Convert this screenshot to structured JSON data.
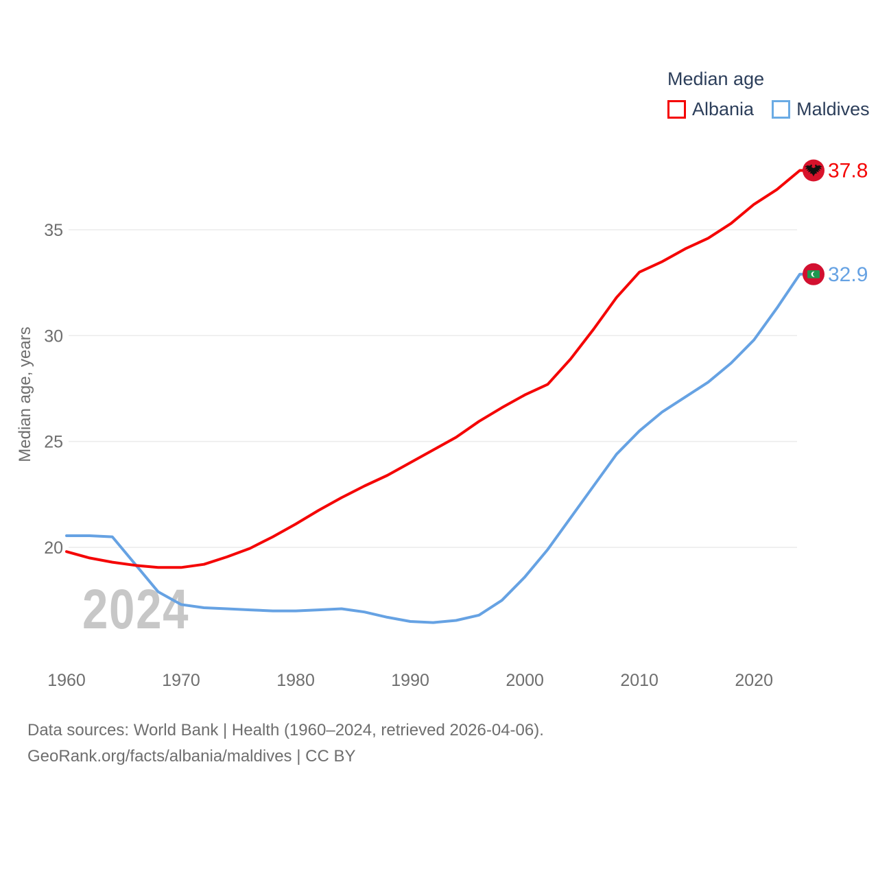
{
  "watermark": "2024",
  "legend": {
    "title": "Median age"
  },
  "footer": {
    "line1": "Data sources: World Bank | Health (1960–2024, retrieved 2026-04-06).",
    "line2": "GeoRank.org/facts/albania/maldives | CC BY"
  },
  "colors": {
    "albania_line": "#f40505",
    "maldives_line": "#66a2e3",
    "albania_swatch_border": "#f40000",
    "maldives_swatch_border": "#6aabe4",
    "albania_flag_circle": "#d8132b",
    "maldives_flag_circle": "#d21030",
    "maldives_flag_green": "#1d9850",
    "grid": "#ebebeb",
    "axis_text": "#6e6e6e",
    "legend_text": "#2c3e5a"
  },
  "chart_data": {
    "type": "line",
    "title": "Median age",
    "xlabel": "",
    "ylabel": "Median age, years",
    "xlim": [
      1960,
      2024
    ],
    "ylim": [
      16,
      38.5
    ],
    "grid": "horizontal",
    "legend_position": "top-right",
    "xticks": [
      1960,
      1970,
      1980,
      1990,
      2000,
      2010,
      2020
    ],
    "yticks": [
      20,
      25,
      30,
      35
    ],
    "x": [
      1960,
      1962,
      1964,
      1966,
      1968,
      1970,
      1972,
      1974,
      1976,
      1978,
      1980,
      1982,
      1984,
      1986,
      1988,
      1990,
      1992,
      1994,
      1996,
      1998,
      2000,
      2002,
      2004,
      2006,
      2008,
      2010,
      2012,
      2014,
      2016,
      2018,
      2020,
      2022,
      2024
    ],
    "series": [
      {
        "name": "Albania",
        "color": "#f40505",
        "end_label": "37.8",
        "end_value": 37.8,
        "flag": "albania",
        "values": [
          19.8,
          19.5,
          19.3,
          19.15,
          19.05,
          19.05,
          19.2,
          19.55,
          19.95,
          20.5,
          21.1,
          21.75,
          22.35,
          22.9,
          23.4,
          24.0,
          24.6,
          25.2,
          25.95,
          26.6,
          27.2,
          27.7,
          28.9,
          30.3,
          31.8,
          33.0,
          33.5,
          34.1,
          34.6,
          35.3,
          36.2,
          36.9,
          37.8
        ]
      },
      {
        "name": "Maldives",
        "color": "#66a2e3",
        "end_label": "32.9",
        "end_value": 32.9,
        "flag": "maldives",
        "values": [
          20.55,
          20.55,
          20.5,
          19.2,
          17.9,
          17.3,
          17.15,
          17.1,
          17.05,
          17.0,
          17.0,
          17.05,
          17.1,
          16.95,
          16.7,
          16.5,
          16.45,
          16.55,
          16.8,
          17.5,
          18.6,
          19.9,
          21.4,
          22.9,
          24.4,
          25.5,
          26.4,
          27.1,
          27.8,
          28.7,
          29.8,
          31.3,
          32.9
        ]
      }
    ]
  }
}
